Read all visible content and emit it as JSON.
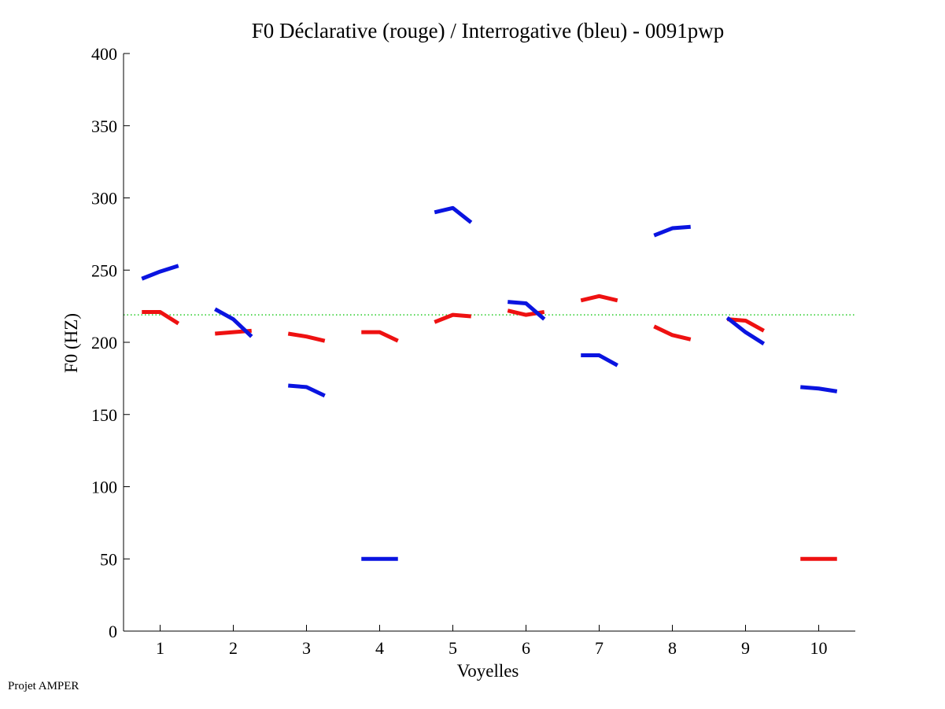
{
  "footer": "Projet AMPER",
  "chart_data": {
    "type": "line",
    "title": "F0 Déclarative (rouge) / Interrogative (bleu) - 0091pwp",
    "xlabel": "Voyelles",
    "ylabel": "F0 (HZ)",
    "xlim": [
      0.5,
      10.5
    ],
    "ylim": [
      0,
      400
    ],
    "xticks": [
      "1",
      "2",
      "3",
      "4",
      "5",
      "6",
      "7",
      "8",
      "9",
      "10"
    ],
    "yticks": [
      "0",
      "50",
      "100",
      "150",
      "200",
      "250",
      "300",
      "350",
      "400"
    ],
    "reference_line": {
      "name": "mean",
      "value": 219,
      "color": "#22cc22"
    },
    "series": [
      {
        "name": "Déclarative (rouge)",
        "color": "#ee1111",
        "segments": [
          {
            "voyelle": 1,
            "x": [
              0.75,
              1.0,
              1.25
            ],
            "y": [
              221,
              221,
              213
            ]
          },
          {
            "voyelle": 2,
            "x": [
              0.75,
              1.0,
              1.25
            ],
            "y": [
              206,
              207,
              208
            ]
          },
          {
            "voyelle": 3,
            "x": [
              0.75,
              1.0,
              1.25
            ],
            "y": [
              206,
              204,
              201
            ]
          },
          {
            "voyelle": 4,
            "x": [
              0.75,
              1.0,
              1.25
            ],
            "y": [
              207,
              207,
              201
            ]
          },
          {
            "voyelle": 5,
            "x": [
              0.75,
              1.0,
              1.25
            ],
            "y": [
              214,
              219,
              218
            ]
          },
          {
            "voyelle": 6,
            "x": [
              0.75,
              1.0,
              1.25
            ],
            "y": [
              222,
              219,
              221
            ]
          },
          {
            "voyelle": 7,
            "x": [
              0.75,
              1.0,
              1.25
            ],
            "y": [
              229,
              232,
              229
            ]
          },
          {
            "voyelle": 8,
            "x": [
              0.75,
              1.0,
              1.25
            ],
            "y": [
              211,
              205,
              202
            ]
          },
          {
            "voyelle": 9,
            "x": [
              0.75,
              1.0,
              1.25
            ],
            "y": [
              216,
              215,
              208
            ]
          },
          {
            "voyelle": 10,
            "x": [
              0.75,
              1.0,
              1.25
            ],
            "y": [
              50,
              50,
              50
            ]
          }
        ]
      },
      {
        "name": "Interrogative (bleu)",
        "color": "#0a14e0",
        "segments": [
          {
            "voyelle": 1,
            "x": [
              0.75,
              1.0,
              1.25
            ],
            "y": [
              244,
              249,
              253
            ]
          },
          {
            "voyelle": 2,
            "x": [
              0.75,
              1.0,
              1.25
            ],
            "y": [
              223,
              216,
              204
            ]
          },
          {
            "voyelle": 3,
            "x": [
              0.75,
              1.0,
              1.25
            ],
            "y": [
              170,
              169,
              163
            ]
          },
          {
            "voyelle": 4,
            "x": [
              0.75,
              1.0,
              1.25
            ],
            "y": [
              50,
              50,
              50
            ]
          },
          {
            "voyelle": 5,
            "x": [
              0.75,
              1.0,
              1.25
            ],
            "y": [
              290,
              293,
              283
            ]
          },
          {
            "voyelle": 6,
            "x": [
              0.75,
              1.0,
              1.25
            ],
            "y": [
              228,
              227,
              216
            ]
          },
          {
            "voyelle": 7,
            "x": [
              0.75,
              1.0,
              1.25
            ],
            "y": [
              191,
              191,
              184
            ]
          },
          {
            "voyelle": 8,
            "x": [
              0.75,
              1.0,
              1.25
            ],
            "y": [
              274,
              279,
              280
            ]
          },
          {
            "voyelle": 9,
            "x": [
              0.75,
              1.0,
              1.25
            ],
            "y": [
              217,
              207,
              199
            ]
          },
          {
            "voyelle": 10,
            "x": [
              0.75,
              1.0,
              1.25
            ],
            "y": [
              169,
              168,
              166
            ]
          }
        ]
      }
    ]
  }
}
